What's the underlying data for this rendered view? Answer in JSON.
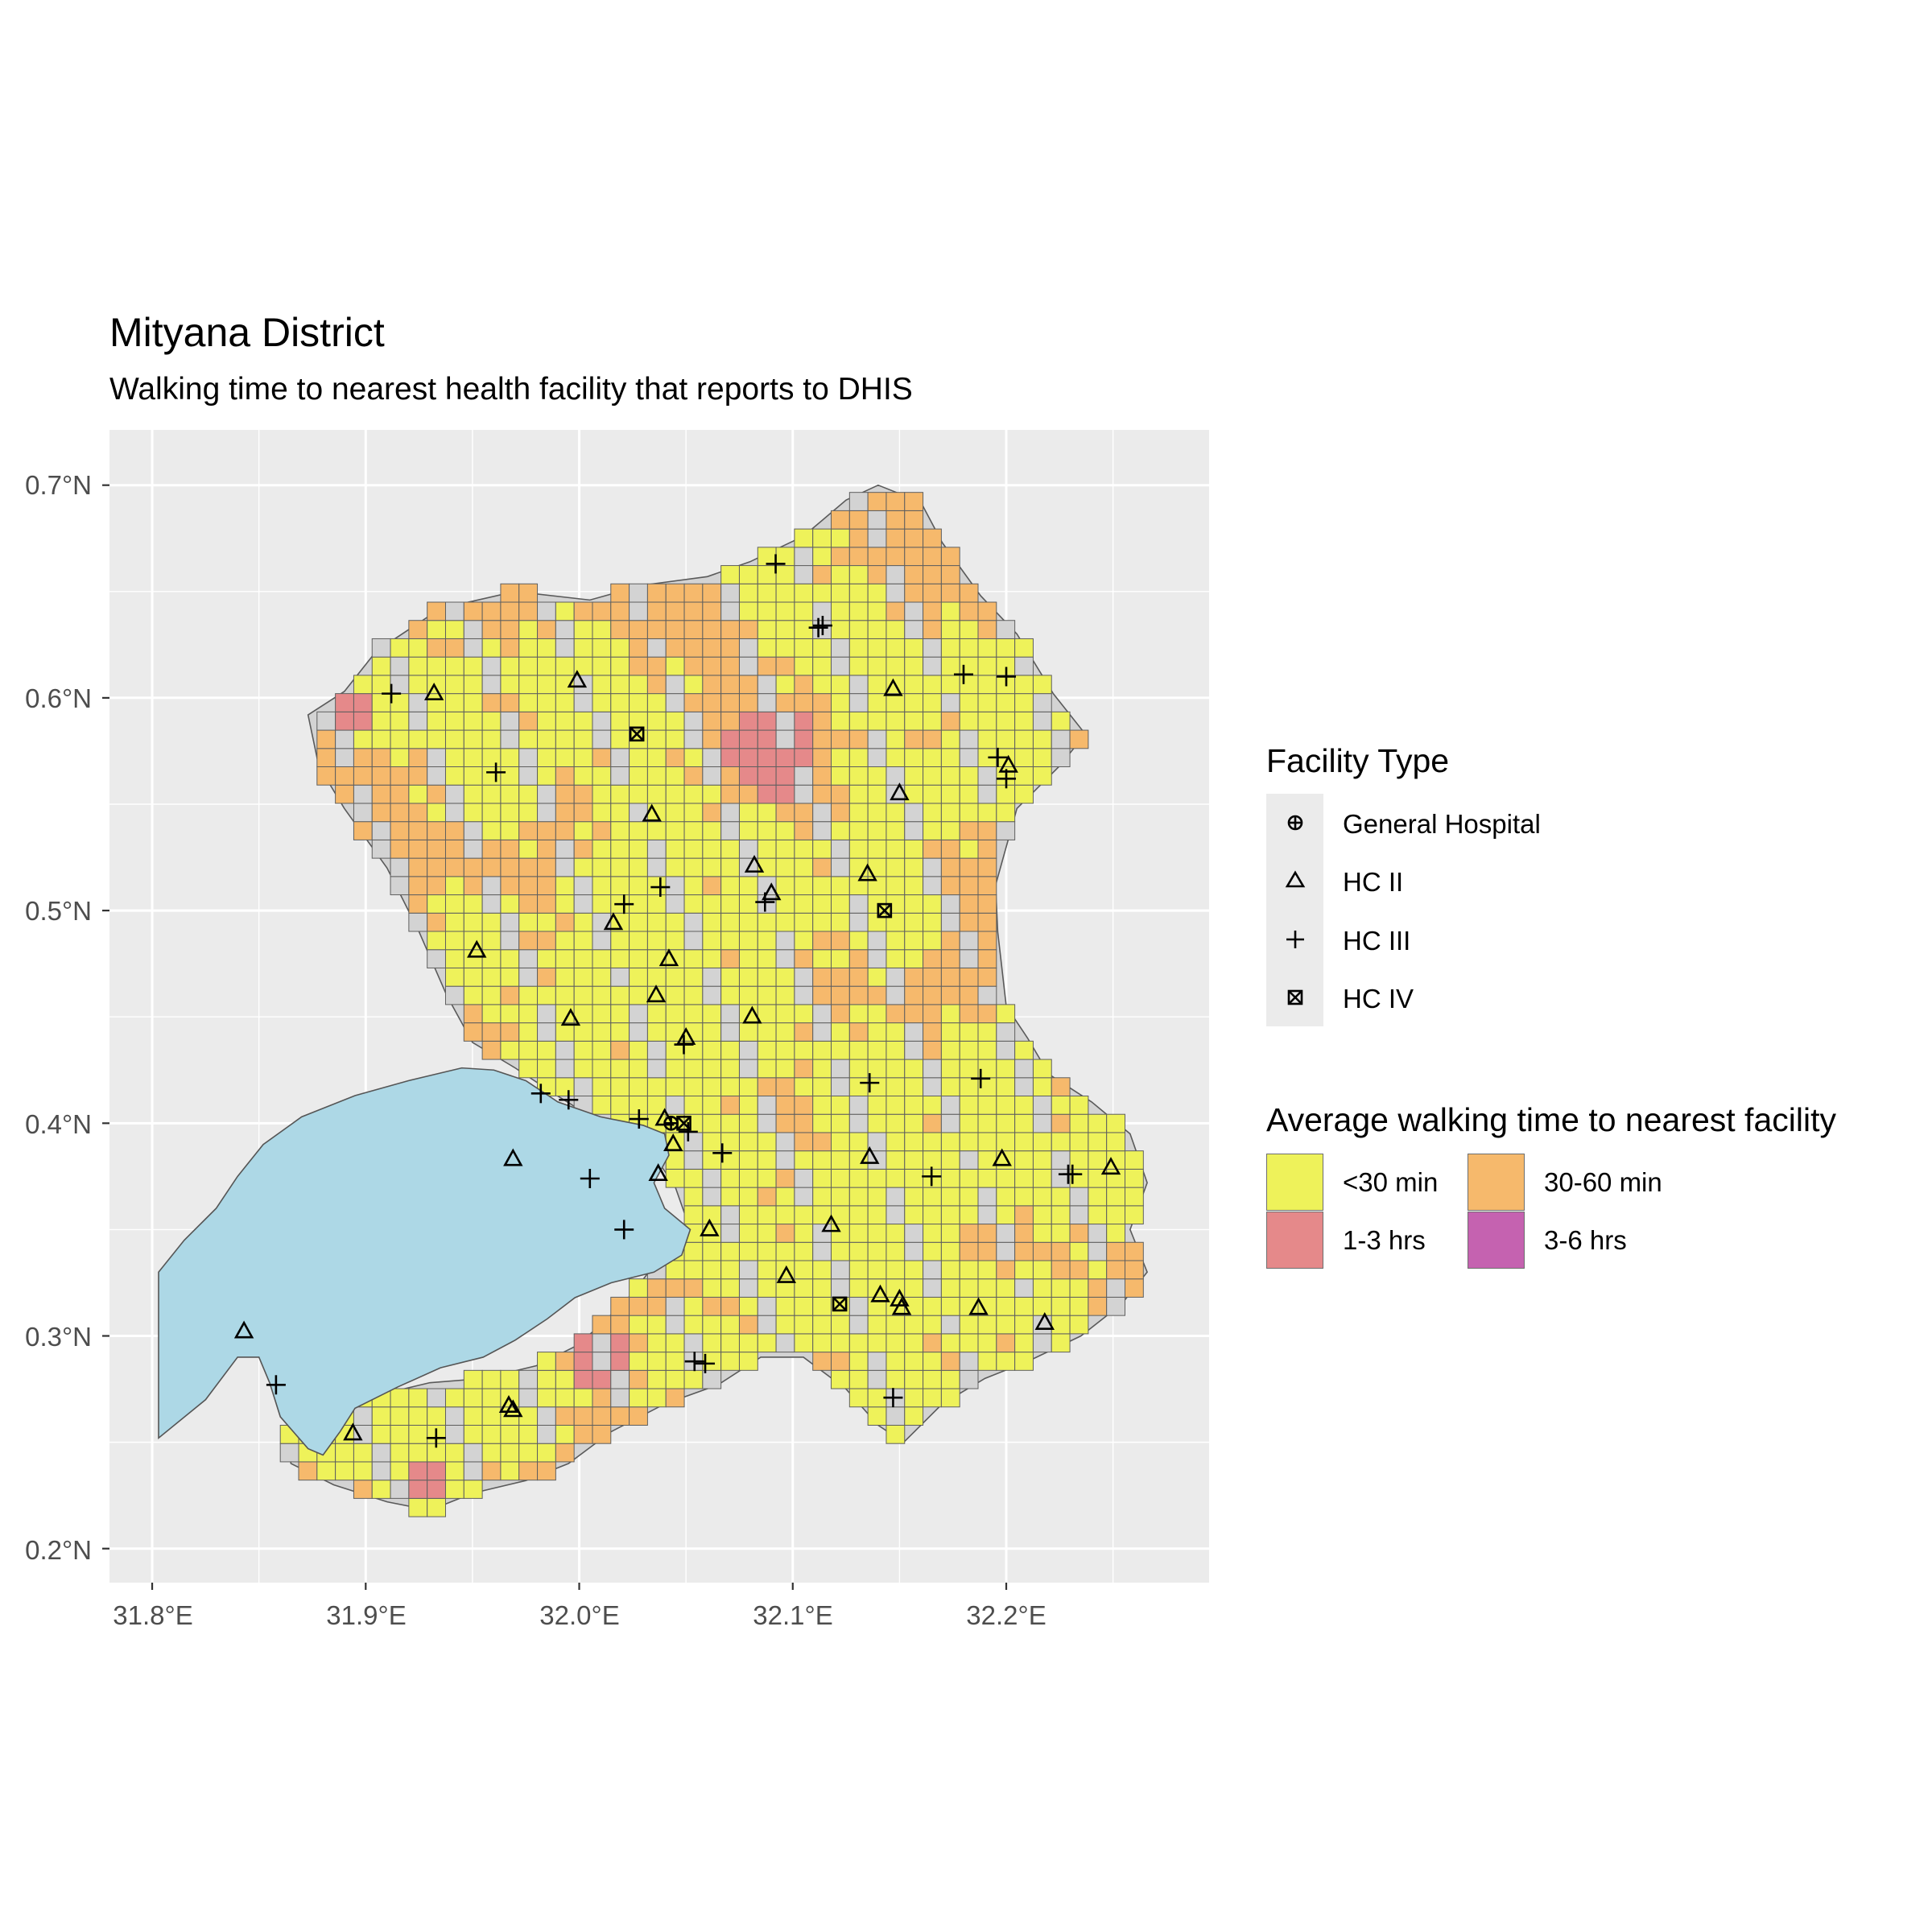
{
  "title": "Mityana District",
  "subtitle": "Walking time to nearest health facility that reports to DHIS",
  "chart_data": {
    "type": "map",
    "x_axis": {
      "range": [
        31.78,
        32.295
      ],
      "ticks": [
        31.8,
        31.9,
        32.0,
        32.1,
        32.2
      ],
      "tick_labels": [
        "31.8°E",
        "31.9°E",
        "32.0°E",
        "32.1°E",
        "32.2°E"
      ]
    },
    "y_axis": {
      "range": [
        0.184,
        0.726
      ],
      "ticks": [
        0.2,
        0.3,
        0.4,
        0.5,
        0.6,
        0.7
      ],
      "tick_labels": [
        "0.2°N",
        "0.3°N",
        "0.4°N",
        "0.5°N",
        "0.6°N",
        "0.7°N"
      ]
    },
    "grid": true,
    "legend_placement": "right",
    "lake_color": "#add8e6",
    "district_fill": "#d3d3d3",
    "facility_legend": {
      "title": "Facility Type",
      "items": [
        {
          "label": "General Hospital",
          "shape": "circle-plus"
        },
        {
          "label": "HC II",
          "shape": "triangle"
        },
        {
          "label": "HC III",
          "shape": "plus"
        },
        {
          "label": "HC IV",
          "shape": "square-x"
        }
      ]
    },
    "walking_legend": {
      "title": "Average walking time to nearest facility",
      "items": [
        {
          "label": "<30 min",
          "color": "#eef25a"
        },
        {
          "label": "30-60 min",
          "color": "#f6b96c"
        },
        {
          "label": "1-3 hrs",
          "color": "#e5898a"
        },
        {
          "label": "3-6 hrs",
          "color": "#c562b0"
        }
      ]
    },
    "facilities": {
      "General Hospital": [
        [
          32.043,
          0.4
        ]
      ],
      "HC II": [
        [
          31.932,
          0.602
        ],
        [
          31.999,
          0.608
        ],
        [
          32.147,
          0.604
        ],
        [
          32.034,
          0.545
        ],
        [
          32.15,
          0.555
        ],
        [
          32.201,
          0.568
        ],
        [
          32.082,
          0.521
        ],
        [
          32.09,
          0.508
        ],
        [
          32.135,
          0.517
        ],
        [
          32.016,
          0.494
        ],
        [
          31.952,
          0.481
        ],
        [
          32.042,
          0.477
        ],
        [
          32.036,
          0.46
        ],
        [
          31.996,
          0.449
        ],
        [
          32.081,
          0.45
        ],
        [
          32.05,
          0.44
        ],
        [
          32.04,
          0.402
        ],
        [
          32.044,
          0.39
        ],
        [
          32.037,
          0.376
        ],
        [
          31.969,
          0.383
        ],
        [
          32.136,
          0.384
        ],
        [
          32.198,
          0.383
        ],
        [
          32.249,
          0.379
        ],
        [
          32.061,
          0.35
        ],
        [
          32.118,
          0.352
        ],
        [
          32.097,
          0.328
        ],
        [
          32.141,
          0.319
        ],
        [
          32.15,
          0.317
        ],
        [
          32.151,
          0.313
        ],
        [
          32.187,
          0.313
        ],
        [
          32.218,
          0.306
        ],
        [
          31.843,
          0.302
        ],
        [
          31.969,
          0.265
        ],
        [
          31.967,
          0.267
        ],
        [
          31.894,
          0.254
        ]
      ],
      "HC III": [
        [
          32.092,
          0.663
        ],
        [
          32.112,
          0.633
        ],
        [
          32.114,
          0.634
        ],
        [
          31.912,
          0.602
        ],
        [
          32.18,
          0.611
        ],
        [
          32.2,
          0.61
        ],
        [
          32.196,
          0.572
        ],
        [
          32.2,
          0.562
        ],
        [
          31.961,
          0.565
        ],
        [
          32.038,
          0.511
        ],
        [
          32.021,
          0.503
        ],
        [
          32.087,
          0.504
        ],
        [
          32.049,
          0.437
        ],
        [
          32.136,
          0.419
        ],
        [
          32.188,
          0.421
        ],
        [
          31.982,
          0.414
        ],
        [
          31.995,
          0.411
        ],
        [
          32.028,
          0.402
        ],
        [
          32.051,
          0.396
        ],
        [
          32.067,
          0.386
        ],
        [
          32.005,
          0.374
        ],
        [
          32.165,
          0.375
        ],
        [
          32.229,
          0.376
        ],
        [
          32.231,
          0.376
        ],
        [
          32.021,
          0.35
        ],
        [
          32.054,
          0.288
        ],
        [
          32.059,
          0.287
        ],
        [
          32.147,
          0.271
        ],
        [
          31.858,
          0.277
        ],
        [
          31.933,
          0.252
        ]
      ],
      "HC IV": [
        [
          32.027,
          0.583
        ],
        [
          32.143,
          0.5
        ],
        [
          32.049,
          0.4
        ],
        [
          32.122,
          0.315
        ]
      ]
    }
  }
}
